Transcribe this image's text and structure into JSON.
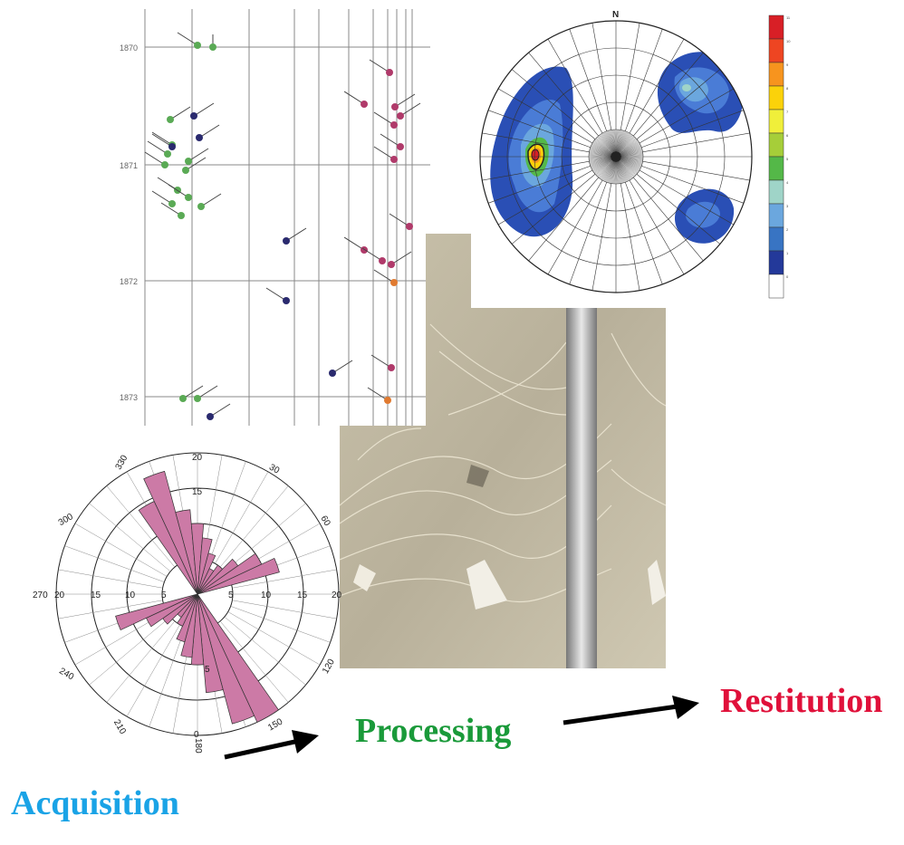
{
  "stages": {
    "acquisition": "Acquisition",
    "processing": "Processing",
    "restitution": "Restitution"
  },
  "colors": {
    "acquisition": "#1aa3e6",
    "processing": "#1a9a3a",
    "restitution": "#e0103a",
    "rose_petal": "#cc7aa6",
    "tadpole_green": "#5aaa55",
    "tadpole_navy": "#2a2a6e",
    "tadpole_magenta": "#b03a6a",
    "tadpole_orange": "#e07a30"
  },
  "tadpole_plot": {
    "depth_labels": [
      "1870",
      "1871",
      "1872",
      "1873"
    ]
  },
  "stereonet": {
    "north_label": "N",
    "colorbar_colors": [
      "#d81f26",
      "#ee4522",
      "#f7941e",
      "#fbd20a",
      "#f0ef3a",
      "#a6ce39",
      "#54b848",
      "#9fd4c8",
      "#6ba7de",
      "#3874c3",
      "#23399a",
      "#ffffff"
    ],
    "colorbar_labels": [
      "11",
      "10",
      "9",
      "8",
      "7",
      "6",
      "5",
      "4",
      "3",
      "2",
      "1",
      "0"
    ]
  },
  "rose_diagram": {
    "bearing_labels": {
      "b30": "30",
      "b60": "60",
      "b120": "120",
      "b150": "150",
      "b180": "180",
      "b210": "210",
      "b240": "240",
      "b270": "270",
      "b300": "300",
      "b330": "330"
    },
    "radius_labels": {
      "top20": "20",
      "top15": "15",
      "left20": "20",
      "left15": "15",
      "left10": "10",
      "left5": "5",
      "right5": "5",
      "right10": "10",
      "right15": "15",
      "right20": "20",
      "bot5": "5",
      "bot0": "0"
    },
    "petal_lengths": [
      14.5,
      18,
      12,
      10,
      8,
      6,
      4,
      5,
      7,
      10,
      12,
      20,
      19,
      14,
      10,
      9,
      7,
      5,
      4,
      6,
      8,
      12
    ]
  }
}
